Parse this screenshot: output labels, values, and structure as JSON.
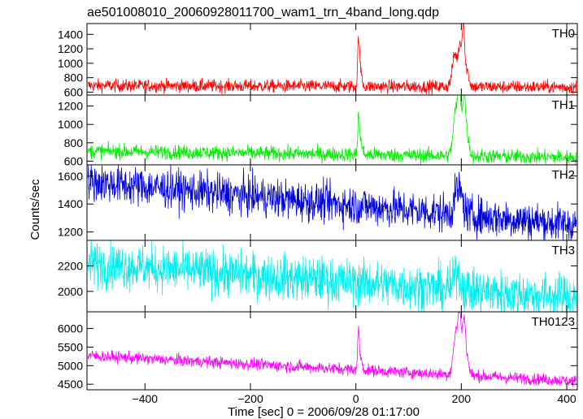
{
  "chart_data": {
    "type": "line",
    "title": "ae501008010_20060928011700_wam1_trn_4band_long.qdp",
    "xlabel": "Time [sec] 0 = 2006/09/28 01:17:00",
    "ylabel": "Counts/sec",
    "xlim": [
      -510,
      420
    ],
    "xticks": [
      -400,
      -200,
      0,
      200,
      400
    ],
    "grid": false,
    "series": [
      {
        "name": "TH0",
        "color": "#ff0000",
        "ylim": [
          560,
          1550
        ],
        "yticks": [
          600,
          800,
          1000,
          1200,
          1400
        ],
        "baseline_start": 690,
        "baseline_end": 670,
        "noise": 45,
        "peaks": [
          {
            "t": 5,
            "height": 550,
            "width": 1.5
          },
          {
            "t": 8,
            "height": 250,
            "width": 3
          },
          {
            "t": 188,
            "height": 450,
            "width": 5
          },
          {
            "t": 198,
            "height": 550,
            "width": 3
          },
          {
            "t": 204,
            "height": 800,
            "width": 2
          },
          {
            "t": 210,
            "height": 250,
            "width": 4
          }
        ]
      },
      {
        "name": "TH1",
        "color": "#00ee00",
        "ylim": [
          560,
          1320
        ],
        "yticks": [
          600,
          800,
          1000,
          1200
        ],
        "baseline_start": 710,
        "baseline_end": 640,
        "noise": 40,
        "peaks": [
          {
            "t": 5,
            "height": 400,
            "width": 1.5
          },
          {
            "t": 9,
            "height": 150,
            "width": 3
          },
          {
            "t": 190,
            "height": 500,
            "width": 5
          },
          {
            "t": 197,
            "height": 550,
            "width": 3
          },
          {
            "t": 205,
            "height": 600,
            "width": 3
          },
          {
            "t": 211,
            "height": 200,
            "width": 4
          }
        ]
      },
      {
        "name": "TH2",
        "color": "#0000dd",
        "ylim": [
          1140,
          1680
        ],
        "yticks": [
          1200,
          1400,
          1600
        ],
        "baseline_start": 1560,
        "baseline_end": 1250,
        "noise": 70,
        "peaks": [
          {
            "t": 192,
            "height": 150,
            "width": 6
          },
          {
            "t": 200,
            "height": 80,
            "width": 5
          }
        ]
      },
      {
        "name": "TH3",
        "color": "#00eeee",
        "ylim": [
          1840,
          2400
        ],
        "yticks": [
          2000,
          2200
        ],
        "baseline_start": 2220,
        "baseline_end": 1950,
        "noise": 90,
        "peaks": [
          {
            "t": 192,
            "height": 150,
            "width": 5
          }
        ]
      },
      {
        "name": "TH0123",
        "color": "#ff00ff",
        "ylim": [
          4350,
          6450
        ],
        "yticks": [
          4500,
          5000,
          5500,
          6000
        ],
        "baseline_start": 5270,
        "baseline_end": 4580,
        "noise": 80,
        "peaks": [
          {
            "t": 5,
            "height": 1000,
            "width": 1.5
          },
          {
            "t": 9,
            "height": 300,
            "width": 3
          },
          {
            "t": 190,
            "height": 1100,
            "width": 5
          },
          {
            "t": 197,
            "height": 1300,
            "width": 3
          },
          {
            "t": 205,
            "height": 1400,
            "width": 3
          },
          {
            "t": 211,
            "height": 400,
            "width": 4
          }
        ]
      }
    ]
  }
}
